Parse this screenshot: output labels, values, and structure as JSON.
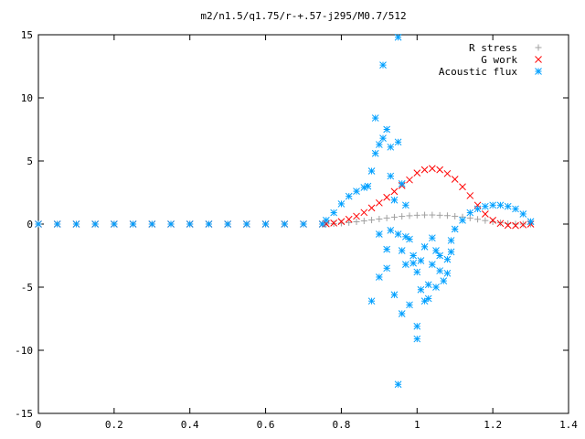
{
  "chart_data": {
    "type": "scatter",
    "title": "m2/n1.5/q1.75/r-+.57-j295/M0.7/512",
    "xlabel": "",
    "ylabel": "",
    "xlim": [
      0,
      1.4
    ],
    "ylim": [
      -15,
      15
    ],
    "xticks": [
      "0",
      "0.2",
      "0.4",
      "0.6",
      "0.8",
      "1",
      "1.2",
      "1.4"
    ],
    "yticks": [
      "15",
      "10",
      "5",
      "0",
      "-5",
      "-10",
      "-15"
    ],
    "grid": false,
    "legend_position": "top-right",
    "series": [
      {
        "name": "R stress",
        "marker": "+",
        "color": "#a0a0a0",
        "points": [
          [
            0.0,
            0
          ],
          [
            0.05,
            0
          ],
          [
            0.1,
            0
          ],
          [
            0.15,
            0
          ],
          [
            0.2,
            0
          ],
          [
            0.25,
            0
          ],
          [
            0.3,
            0
          ],
          [
            0.35,
            0
          ],
          [
            0.4,
            0
          ],
          [
            0.45,
            0
          ],
          [
            0.5,
            0
          ],
          [
            0.55,
            0
          ],
          [
            0.6,
            0
          ],
          [
            0.65,
            0
          ],
          [
            0.7,
            0
          ],
          [
            0.75,
            0
          ],
          [
            0.76,
            0.01
          ],
          [
            0.78,
            0.03
          ],
          [
            0.8,
            0.07
          ],
          [
            0.82,
            0.12
          ],
          [
            0.84,
            0.18
          ],
          [
            0.86,
            0.25
          ],
          [
            0.88,
            0.32
          ],
          [
            0.9,
            0.4
          ],
          [
            0.92,
            0.48
          ],
          [
            0.94,
            0.55
          ],
          [
            0.96,
            0.61
          ],
          [
            0.98,
            0.66
          ],
          [
            1.0,
            0.7
          ],
          [
            1.02,
            0.72
          ],
          [
            1.04,
            0.72
          ],
          [
            1.06,
            0.7
          ],
          [
            1.08,
            0.67
          ],
          [
            1.1,
            0.62
          ],
          [
            1.12,
            0.56
          ],
          [
            1.14,
            0.48
          ],
          [
            1.16,
            0.38
          ],
          [
            1.18,
            0.28
          ],
          [
            1.2,
            0.18
          ],
          [
            1.22,
            0.1
          ],
          [
            1.24,
            0.04
          ],
          [
            1.26,
            0.01
          ],
          [
            1.28,
            0
          ],
          [
            1.3,
            0
          ]
        ]
      },
      {
        "name": "G work",
        "marker": "x",
        "color": "#ff0000",
        "points": [
          [
            0.0,
            0
          ],
          [
            0.05,
            0
          ],
          [
            0.1,
            0
          ],
          [
            0.15,
            0
          ],
          [
            0.2,
            0
          ],
          [
            0.25,
            0
          ],
          [
            0.3,
            0
          ],
          [
            0.35,
            0
          ],
          [
            0.4,
            0
          ],
          [
            0.45,
            0
          ],
          [
            0.5,
            0
          ],
          [
            0.55,
            0
          ],
          [
            0.6,
            0
          ],
          [
            0.65,
            0
          ],
          [
            0.7,
            0
          ],
          [
            0.75,
            0
          ],
          [
            0.76,
            0.02
          ],
          [
            0.78,
            0.08
          ],
          [
            0.8,
            0.2
          ],
          [
            0.82,
            0.38
          ],
          [
            0.84,
            0.62
          ],
          [
            0.86,
            0.92
          ],
          [
            0.88,
            1.28
          ],
          [
            0.9,
            1.68
          ],
          [
            0.92,
            2.12
          ],
          [
            0.94,
            2.58
          ],
          [
            0.96,
            3.05
          ],
          [
            0.98,
            3.5
          ],
          [
            1.0,
            4.05
          ],
          [
            1.02,
            4.3
          ],
          [
            1.04,
            4.4
          ],
          [
            1.06,
            4.3
          ],
          [
            1.08,
            4.0
          ],
          [
            1.1,
            3.55
          ],
          [
            1.12,
            2.95
          ],
          [
            1.14,
            2.25
          ],
          [
            1.16,
            1.5
          ],
          [
            1.18,
            0.8
          ],
          [
            1.2,
            0.3
          ],
          [
            1.22,
            0.05
          ],
          [
            1.24,
            -0.1
          ],
          [
            1.26,
            -0.12
          ],
          [
            1.28,
            -0.06
          ],
          [
            1.3,
            0
          ]
        ]
      },
      {
        "name": "Acoustic flux",
        "marker": "*",
        "color": "#00a0ff",
        "points": [
          [
            0.0,
            0
          ],
          [
            0.05,
            0
          ],
          [
            0.1,
            0
          ],
          [
            0.15,
            0
          ],
          [
            0.2,
            0
          ],
          [
            0.25,
            0
          ],
          [
            0.3,
            0
          ],
          [
            0.35,
            0
          ],
          [
            0.4,
            0
          ],
          [
            0.45,
            0
          ],
          [
            0.5,
            0
          ],
          [
            0.55,
            0
          ],
          [
            0.6,
            0
          ],
          [
            0.65,
            0
          ],
          [
            0.7,
            0
          ],
          [
            0.75,
            0
          ],
          [
            0.76,
            0.3
          ],
          [
            0.78,
            0.9
          ],
          [
            0.8,
            1.6
          ],
          [
            0.82,
            2.2
          ],
          [
            0.84,
            2.6
          ],
          [
            0.86,
            2.9
          ],
          [
            0.87,
            3.0
          ],
          [
            0.88,
            4.2
          ],
          [
            0.89,
            5.6
          ],
          [
            0.9,
            6.3
          ],
          [
            0.91,
            6.8
          ],
          [
            0.92,
            7.5
          ],
          [
            0.93,
            3.8
          ],
          [
            0.94,
            1.9
          ],
          [
            0.95,
            -0.8
          ],
          [
            0.96,
            -2.1
          ],
          [
            0.97,
            -3.2
          ],
          [
            0.89,
            8.4
          ],
          [
            0.91,
            12.6
          ],
          [
            0.95,
            14.8
          ],
          [
            0.93,
            6.1
          ],
          [
            0.95,
            6.5
          ],
          [
            0.96,
            3.2
          ],
          [
            0.97,
            1.5
          ],
          [
            0.98,
            -1.2
          ],
          [
            0.99,
            -2.5
          ],
          [
            1.0,
            -3.8
          ],
          [
            1.01,
            -5.2
          ],
          [
            1.02,
            -6.1
          ],
          [
            1.03,
            -4.8
          ],
          [
            1.04,
            -3.2
          ],
          [
            1.05,
            -2.1
          ],
          [
            1.06,
            -3.7
          ],
          [
            1.07,
            -4.5
          ],
          [
            1.08,
            -2.8
          ],
          [
            1.09,
            -1.3
          ],
          [
            1.1,
            -0.4
          ],
          [
            1.12,
            0.3
          ],
          [
            1.14,
            0.9
          ],
          [
            1.16,
            1.2
          ],
          [
            1.18,
            1.4
          ],
          [
            1.2,
            1.5
          ],
          [
            1.22,
            1.5
          ],
          [
            1.24,
            1.4
          ],
          [
            1.26,
            1.2
          ],
          [
            1.28,
            0.8
          ],
          [
            1.3,
            0.2
          ],
          [
            0.88,
            -6.1
          ],
          [
            0.9,
            -4.2
          ],
          [
            0.92,
            -2.0
          ],
          [
            0.94,
            -5.6
          ],
          [
            0.96,
            -7.1
          ],
          [
            0.98,
            -6.4
          ],
          [
            1.0,
            -8.1
          ],
          [
            1.0,
            -9.1
          ],
          [
            0.95,
            -12.7
          ],
          [
            1.03,
            -5.9
          ],
          [
            1.05,
            -5.0
          ],
          [
            1.08,
            -3.9
          ],
          [
            0.9,
            -0.8
          ],
          [
            0.93,
            -0.5
          ],
          [
            0.97,
            -1.0
          ],
          [
            1.02,
            -1.8
          ],
          [
            1.04,
            -1.1
          ],
          [
            1.06,
            -2.5
          ],
          [
            1.09,
            -2.2
          ],
          [
            0.99,
            -3.1
          ],
          [
            1.01,
            -2.9
          ],
          [
            0.92,
            -3.5
          ]
        ]
      }
    ]
  }
}
